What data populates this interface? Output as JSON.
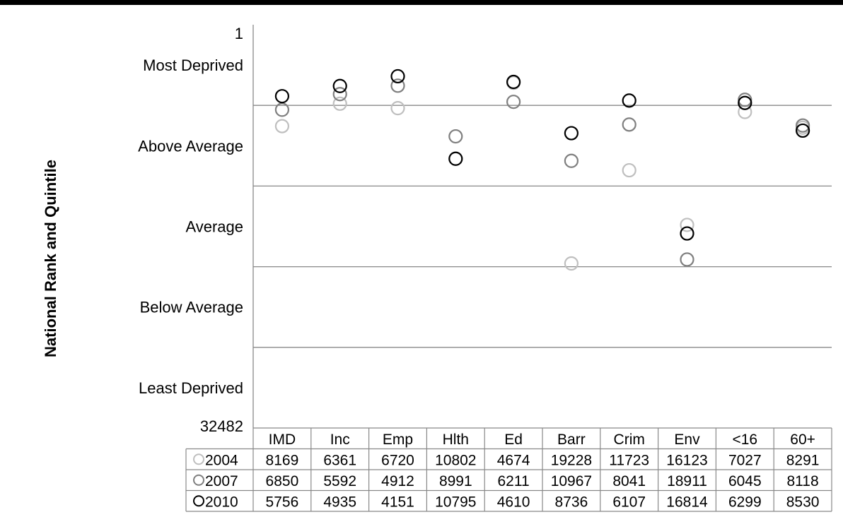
{
  "chart_data": {
    "type": "scatter",
    "ylabel": "National Rank and Quintile",
    "y_top_label": "1",
    "y_bottom_label": "32482",
    "ylim": [
      1,
      32482
    ],
    "y_inverted": true,
    "quintile_labels": [
      "Most Deprived",
      "Above Average",
      "Average",
      "Below Average",
      "Least Deprived"
    ],
    "categories": [
      "IMD",
      "Inc",
      "Emp",
      "Hlth",
      "Ed",
      "Barr",
      "Crim",
      "Env",
      "<16",
      "60+"
    ],
    "series": [
      {
        "name": "2004",
        "color": "#bfbfbf",
        "values": [
          8169,
          6361,
          6720,
          10802,
          4674,
          19228,
          11723,
          16123,
          7027,
          8291
        ]
      },
      {
        "name": "2007",
        "color": "#7f7f7f",
        "values": [
          6850,
          5592,
          4912,
          8991,
          6211,
          10967,
          8041,
          18911,
          6045,
          8118
        ]
      },
      {
        "name": "2010",
        "color": "#000000",
        "values": [
          5756,
          4935,
          4151,
          10795,
          4610,
          8736,
          6107,
          16814,
          6299,
          8530
        ]
      }
    ],
    "gridlines": true,
    "legend": "table-below"
  }
}
